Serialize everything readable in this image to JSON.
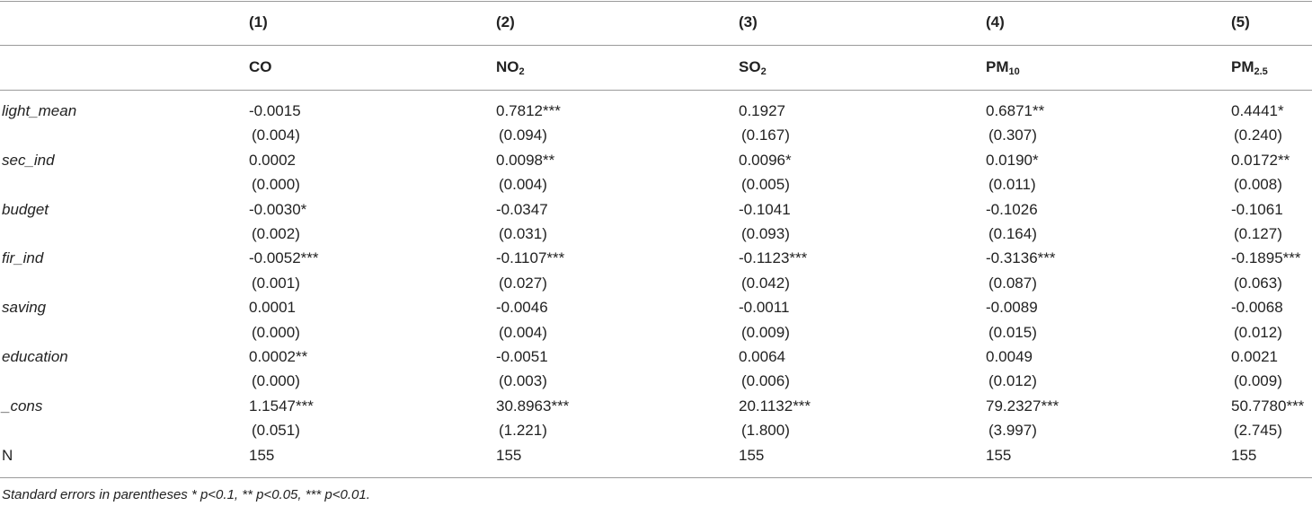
{
  "header": {
    "numbers": [
      "(1)",
      "(2)",
      "(3)",
      "(4)",
      "(5)"
    ],
    "columns": [
      {
        "base": "CO"
      },
      {
        "base": "NO",
        "sub": "2"
      },
      {
        "base": "SO",
        "sub": "2"
      },
      {
        "base": "PM",
        "sub": "10"
      },
      {
        "base": "PM",
        "sub": "2.5"
      }
    ]
  },
  "rows": [
    {
      "label": "light_mean",
      "coef": [
        "-0.0015",
        "0.7812***",
        "0.1927",
        "0.6871**",
        "0.4441*"
      ],
      "se": [
        "(0.004)",
        "(0.094)",
        "(0.167)",
        "(0.307)",
        "(0.240)"
      ]
    },
    {
      "label": "sec_ind",
      "coef": [
        "0.0002",
        "0.0098**",
        "0.0096*",
        "0.0190*",
        "0.0172**"
      ],
      "se": [
        "(0.000)",
        "(0.004)",
        "(0.005)",
        "(0.011)",
        "(0.008)"
      ]
    },
    {
      "label": "budget",
      "coef": [
        "-0.0030*",
        "-0.0347",
        "-0.1041",
        "-0.1026",
        "-0.1061"
      ],
      "se": [
        "(0.002)",
        "(0.031)",
        "(0.093)",
        "(0.164)",
        "(0.127)"
      ]
    },
    {
      "label": "fir_ind",
      "coef": [
        "-0.0052***",
        "-0.1107***",
        "-0.1123***",
        "-0.3136***",
        "-0.1895***"
      ],
      "se": [
        "(0.001)",
        "(0.027)",
        "(0.042)",
        "(0.087)",
        "(0.063)"
      ]
    },
    {
      "label": "saving",
      "coef": [
        "0.0001",
        "-0.0046",
        "-0.0011",
        "-0.0089",
        "-0.0068"
      ],
      "se": [
        "(0.000)",
        "(0.004)",
        "(0.009)",
        "(0.015)",
        "(0.012)"
      ]
    },
    {
      "label": "education",
      "coef": [
        "0.0002**",
        "-0.0051",
        "0.0064",
        "0.0049",
        "0.0021"
      ],
      "se": [
        "(0.000)",
        "(0.003)",
        "(0.006)",
        "(0.012)",
        "(0.009)"
      ]
    },
    {
      "label": "_cons",
      "coef": [
        "1.1547***",
        "30.8963***",
        "20.1132***",
        "79.2327***",
        "50.7780***"
      ],
      "se": [
        "(0.051)",
        "(1.221)",
        "(1.800)",
        "(3.997)",
        "(2.745)"
      ]
    }
  ],
  "n_row": {
    "label": "N",
    "values": [
      "155",
      "155",
      "155",
      "155",
      "155"
    ]
  },
  "footnote": "Standard errors in parentheses * p<0.1, ** p<0.05, *** p<0.01."
}
